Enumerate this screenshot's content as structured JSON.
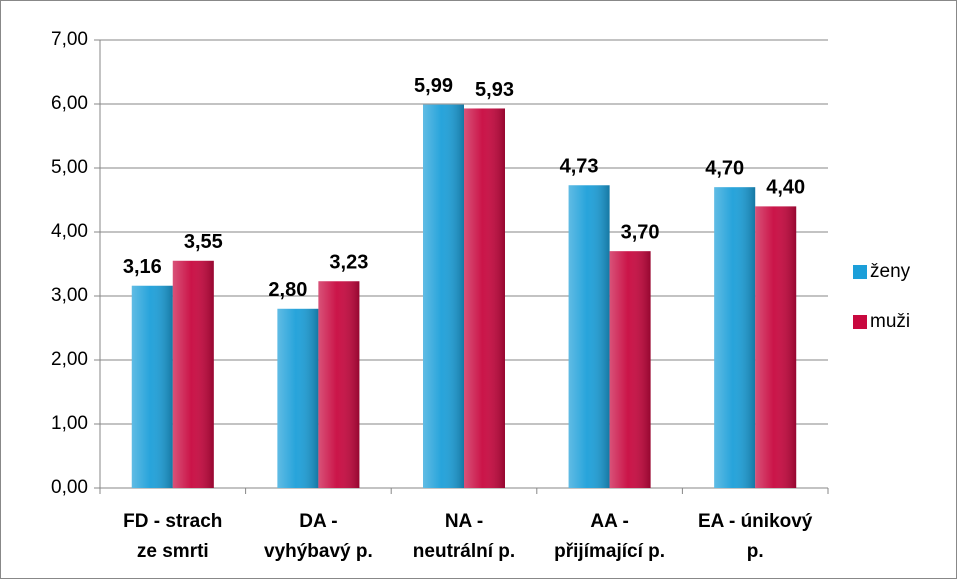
{
  "chart_data": {
    "type": "bar",
    "categories": [
      [
        "FD - strach",
        "ze smrti"
      ],
      [
        "DA -",
        "vyhýbavý p."
      ],
      [
        "NA -",
        "neutrální p."
      ],
      [
        "AA -",
        "přijímající p."
      ],
      [
        "EA - únikový",
        "p."
      ]
    ],
    "series": [
      {
        "name": "ženy",
        "color": "#1c9fd9",
        "values": [
          3.16,
          2.8,
          5.99,
          4.73,
          4.7
        ],
        "value_labels": [
          "3,16",
          "2,80",
          "5,99",
          "4,73",
          "4,70"
        ]
      },
      {
        "name": "muži",
        "color": "#c8083f",
        "values": [
          3.55,
          3.23,
          5.93,
          3.7,
          4.4
        ],
        "value_labels": [
          "3,55",
          "3,23",
          "5,93",
          "3,70",
          "4,40"
        ]
      }
    ],
    "ylim": [
      0,
      7
    ],
    "yticks": [
      {
        "value": 0,
        "label": "0,00"
      },
      {
        "value": 1,
        "label": "1,00"
      },
      {
        "value": 2,
        "label": "2,00"
      },
      {
        "value": 3,
        "label": "3,00"
      },
      {
        "value": 4,
        "label": "4,00"
      },
      {
        "value": 5,
        "label": "5,00"
      },
      {
        "value": 6,
        "label": "6,00"
      },
      {
        "value": 7,
        "label": "7,00"
      }
    ],
    "grid": true,
    "legend": "right"
  }
}
